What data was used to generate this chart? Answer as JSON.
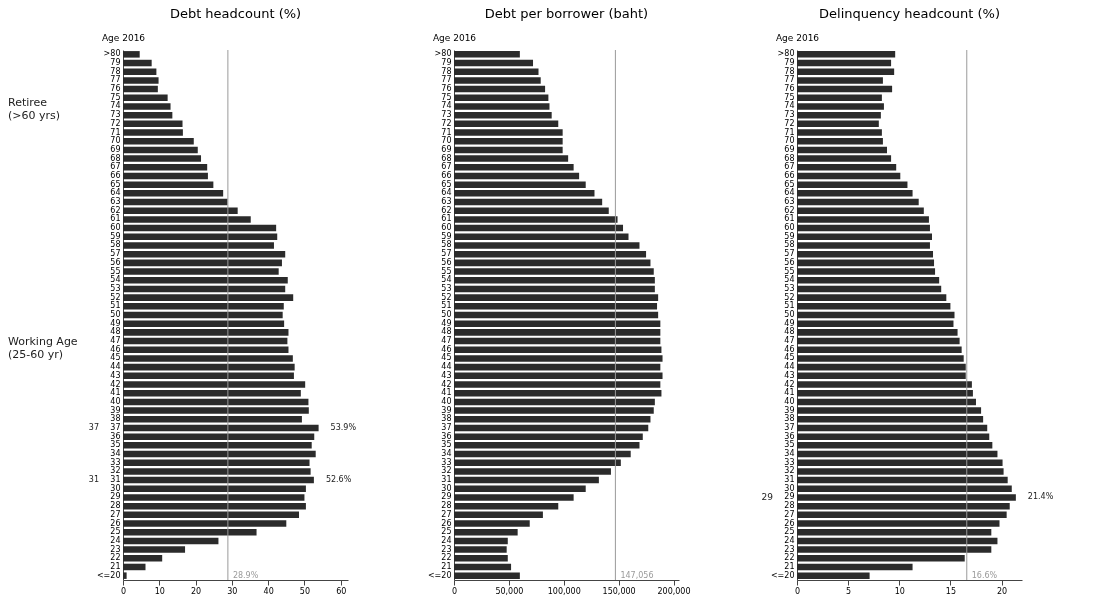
{
  "chart_data": [
    {
      "type": "bar",
      "orientation": "horizontal",
      "title": "Debt headcount (%)",
      "ylabel": "Age 2016",
      "categories": [
        ">80",
        "79",
        "78",
        "77",
        "76",
        "75",
        "74",
        "73",
        "72",
        "71",
        "70",
        "69",
        "68",
        "67",
        "66",
        "65",
        "64",
        "63",
        "62",
        "61",
        "60",
        "59",
        "58",
        "57",
        "56",
        "55",
        "54",
        "53",
        "52",
        "51",
        "50",
        "49",
        "48",
        "47",
        "46",
        "45",
        "44",
        "43",
        "42",
        "41",
        "40",
        "39",
        "38",
        "37",
        "36",
        "35",
        "34",
        "33",
        "32",
        "31",
        "30",
        "29",
        "28",
        "27",
        "26",
        "25",
        "24",
        "23",
        "22",
        "21",
        "<=20"
      ],
      "values": [
        4.6,
        7.9,
        9.2,
        9.8,
        9.6,
        12.3,
        13.1,
        13.6,
        16.4,
        16.5,
        19.5,
        20.6,
        21.5,
        23.2,
        23.4,
        24.9,
        27.6,
        28.8,
        31.6,
        35.2,
        42.2,
        42.5,
        41.6,
        44.7,
        43.8,
        42.9,
        45.4,
        44.7,
        46.9,
        44.3,
        44.0,
        44.4,
        45.6,
        45.3,
        45.6,
        46.8,
        47.3,
        47.1,
        50.2,
        49.0,
        51.1,
        51.2,
        49.3,
        53.9,
        52.7,
        52.0,
        53.1,
        51.4,
        51.7,
        52.6,
        50.4,
        50.0,
        50.4,
        48.5,
        45.0,
        36.8,
        26.3,
        17.1,
        10.8,
        6.2,
        1.0
      ],
      "value_labels": [
        null,
        null,
        null,
        null,
        null,
        null,
        null,
        null,
        null,
        null,
        null,
        null,
        null,
        null,
        null,
        null,
        null,
        null,
        null,
        null,
        null,
        null,
        null,
        null,
        null,
        null,
        null,
        null,
        null,
        null,
        null,
        null,
        null,
        null,
        null,
        null,
        null,
        null,
        null,
        null,
        null,
        null,
        null,
        "53.9%",
        null,
        null,
        null,
        null,
        null,
        "52.6%",
        null,
        null,
        null,
        null,
        null,
        null,
        null,
        null,
        null,
        null,
        null
      ],
      "color": "#2b2b2b",
      "xlim": [
        0,
        62
      ],
      "xticks": [
        0,
        10,
        20,
        30,
        40,
        50,
        60
      ],
      "ref_lines": [
        {
          "axis": "x",
          "value": 28.9,
          "label": "28.9%",
          "color": "#9a9a9a"
        }
      ],
      "annotations": [
        "Retiree\n(>60 yrs)",
        "Working Age\n(25-60 yr)",
        "37",
        "31"
      ]
    },
    {
      "type": "bar",
      "orientation": "horizontal",
      "title": "Debt per borrower (baht)",
      "ylabel": "Age 2016",
      "categories": [
        ">80",
        "79",
        "78",
        "77",
        "76",
        "75",
        "74",
        "73",
        "72",
        "71",
        "70",
        "69",
        "68",
        "67",
        "66",
        "65",
        "64",
        "63",
        "62",
        "61",
        "60",
        "59",
        "58",
        "57",
        "56",
        "55",
        "54",
        "53",
        "52",
        "51",
        "50",
        "49",
        "48",
        "47",
        "46",
        "45",
        "44",
        "43",
        "42",
        "41",
        "40",
        "39",
        "38",
        "37",
        "36",
        "35",
        "34",
        "33",
        "32",
        "31",
        "30",
        "29",
        "28",
        "27",
        "26",
        "25",
        "24",
        "23",
        "22",
        "21",
        "<=20"
      ],
      "values": [
        60000,
        72000,
        77000,
        79000,
        83000,
        86000,
        87000,
        89000,
        95000,
        99000,
        99000,
        99000,
        104000,
        109000,
        114000,
        120000,
        128000,
        135000,
        141000,
        149000,
        154000,
        159000,
        169000,
        175000,
        179000,
        182000,
        183000,
        183000,
        186000,
        185000,
        186000,
        188000,
        188000,
        188000,
        189000,
        190000,
        188000,
        190000,
        188000,
        189000,
        183000,
        182000,
        179000,
        177000,
        172000,
        169000,
        161000,
        152000,
        143000,
        132000,
        120000,
        109000,
        95000,
        81000,
        69000,
        58000,
        49000,
        48000,
        49000,
        52000,
        60000
      ],
      "color": "#2b2b2b",
      "xlim": [
        0,
        205000
      ],
      "xticks": [
        0,
        {
          "value": 50000,
          "label": "50,000"
        },
        {
          "value": 100000,
          "label": "100,000"
        },
        {
          "value": 150000,
          "label": "150,000"
        },
        {
          "value": 200000,
          "label": "200,000"
        }
      ],
      "ref_lines": [
        {
          "axis": "x",
          "value": 147056,
          "label": "147,056",
          "color": "#9a9a9a"
        }
      ]
    },
    {
      "type": "bar",
      "orientation": "horizontal",
      "title": "Delinquency headcount (%)",
      "ylabel": "Age 2016",
      "categories": [
        ">80",
        "79",
        "78",
        "77",
        "76",
        "75",
        "74",
        "73",
        "72",
        "71",
        "70",
        "69",
        "68",
        "67",
        "66",
        "65",
        "64",
        "63",
        "62",
        "61",
        "60",
        "59",
        "58",
        "57",
        "56",
        "55",
        "54",
        "53",
        "52",
        "51",
        "50",
        "49",
        "48",
        "47",
        "46",
        "45",
        "44",
        "43",
        "42",
        "41",
        "40",
        "39",
        "38",
        "37",
        "36",
        "35",
        "34",
        "33",
        "32",
        "31",
        "30",
        "29",
        "28",
        "27",
        "26",
        "25",
        "24",
        "23",
        "22",
        "21",
        "<=20"
      ],
      "values": [
        9.6,
        9.2,
        9.5,
        8.4,
        9.3,
        8.3,
        8.5,
        8.2,
        8.0,
        8.3,
        8.4,
        8.8,
        9.2,
        9.7,
        10.1,
        10.8,
        11.3,
        11.9,
        12.4,
        12.9,
        13.0,
        13.2,
        13.0,
        13.3,
        13.4,
        13.5,
        13.9,
        14.1,
        14.6,
        15.0,
        15.4,
        15.3,
        15.7,
        15.9,
        16.1,
        16.3,
        16.5,
        16.5,
        17.1,
        17.2,
        17.5,
        18.0,
        18.2,
        18.6,
        18.8,
        19.1,
        19.6,
        20.1,
        20.2,
        20.6,
        21.0,
        21.4,
        20.8,
        20.5,
        19.8,
        19.0,
        19.6,
        19.0,
        16.4,
        11.3,
        7.1
      ],
      "value_labels": [
        null,
        null,
        null,
        null,
        null,
        null,
        null,
        null,
        null,
        null,
        null,
        null,
        null,
        null,
        null,
        null,
        null,
        null,
        null,
        null,
        null,
        null,
        null,
        null,
        null,
        null,
        null,
        null,
        null,
        null,
        null,
        null,
        null,
        null,
        null,
        null,
        null,
        null,
        null,
        null,
        null,
        null,
        null,
        null,
        null,
        null,
        null,
        null,
        null,
        null,
        null,
        "21.4%",
        null,
        null,
        null,
        null,
        null,
        null,
        null,
        null,
        null
      ],
      "color": "#2b2b2b",
      "xlim": [
        0,
        22
      ],
      "xticks": [
        0,
        5,
        10,
        15,
        20
      ],
      "ref_lines": [
        {
          "axis": "x",
          "value": 16.6,
          "label": "16.6%",
          "color": "#9a9a9a"
        }
      ],
      "annotations": [
        "29"
      ]
    }
  ]
}
